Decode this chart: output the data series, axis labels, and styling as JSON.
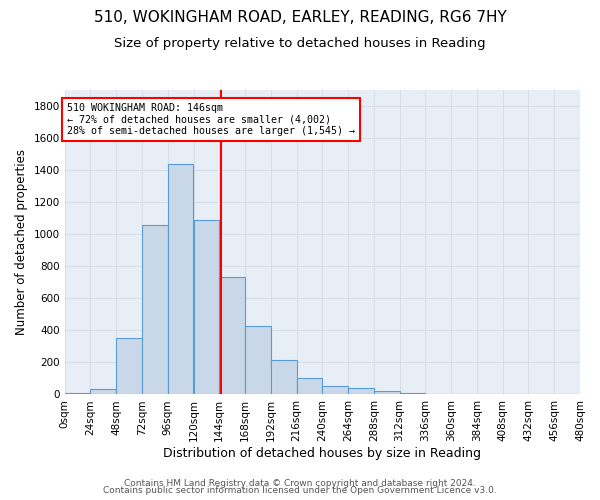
{
  "title1": "510, WOKINGHAM ROAD, EARLEY, READING, RG6 7HY",
  "title2": "Size of property relative to detached houses in Reading",
  "xlabel": "Distribution of detached houses by size in Reading",
  "ylabel": "Number of detached properties",
  "footer1": "Contains HM Land Registry data © Crown copyright and database right 2024.",
  "footer2": "Contains public sector information licensed under the Open Government Licence v3.0.",
  "bin_edges": [
    0,
    24,
    48,
    72,
    96,
    120,
    144,
    168,
    192,
    216,
    240,
    264,
    288,
    312,
    336,
    360,
    384,
    408,
    432,
    456,
    480
  ],
  "bar_heights": [
    10,
    35,
    350,
    1055,
    1440,
    1090,
    730,
    430,
    215,
    105,
    52,
    40,
    22,
    10,
    5,
    3,
    2,
    1,
    1,
    0
  ],
  "bar_color": "#c8d8e8",
  "bar_edge_color": "#5b9bd5",
  "property_size": 146,
  "annotation_text": "510 WOKINGHAM ROAD: 146sqm\n← 72% of detached houses are smaller (4,002)\n28% of semi-detached houses are larger (1,545) →",
  "vline_color": "red",
  "annotation_box_color": "red",
  "annotation_text_color": "black",
  "grid_color": "#d4dde8",
  "bg_color": "#e8eef5",
  "ylim": [
    0,
    1900
  ],
  "yticks": [
    0,
    200,
    400,
    600,
    800,
    1000,
    1200,
    1400,
    1600,
    1800
  ],
  "title1_fontsize": 11,
  "title2_fontsize": 9.5,
  "xlabel_fontsize": 9,
  "ylabel_fontsize": 8.5,
  "tick_fontsize": 7.5,
  "footer_fontsize": 6.5
}
